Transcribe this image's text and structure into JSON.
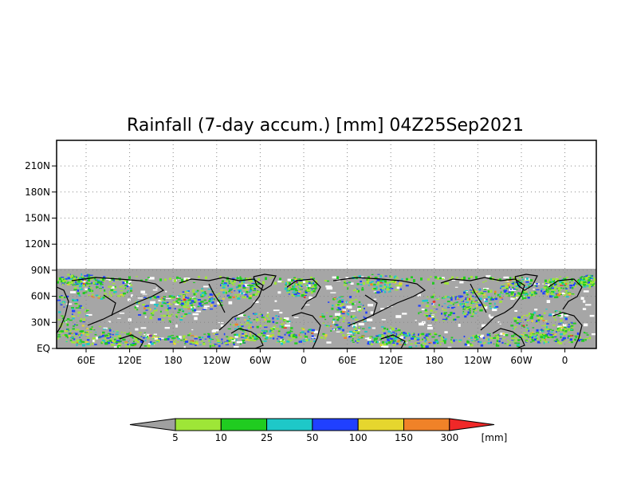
{
  "title": "Rainfall (7-day accum.) [mm] 04Z25Sep2021",
  "lat_labels": [
    "EQ",
    "30N",
    "60N",
    "90N",
    "120N",
    "150N",
    "180N",
    "210N"
  ],
  "lon_labels": [
    "60E",
    "120E",
    "180",
    "120W",
    "60W",
    "0",
    "60E",
    "120E",
    "180",
    "120W",
    "60W",
    "0"
  ],
  "colorbar": {
    "bins": [
      {
        "color": "#a0a0a0"
      },
      {
        "color": "#9ee637"
      },
      {
        "color": "#20cc20"
      },
      {
        "color": "#1ec8c8"
      },
      {
        "color": "#2040ff"
      },
      {
        "color": "#e6d62e"
      },
      {
        "color": "#f08228"
      },
      {
        "color": "#f02828"
      }
    ],
    "labels": [
      "5",
      "10",
      "25",
      "50",
      "100",
      "150",
      "300"
    ],
    "unit": "[mm]"
  },
  "colors": {
    "land_no_rain": "#a6a6a6",
    "ocean_no_rain": "#ffffff",
    "coastline": "#000000"
  }
}
